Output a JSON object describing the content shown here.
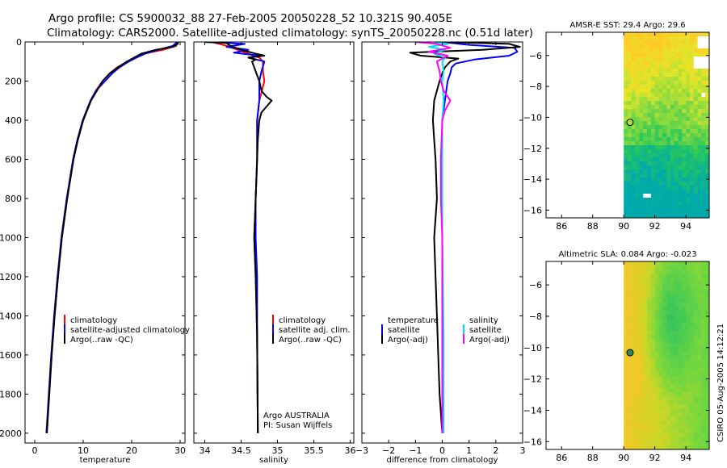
{
  "header": {
    "line1": "Argo profile: CS 5900032_88 27-Feb-2005 20050228_52 10.321S 90.405E",
    "line2": "Climatology: CARS2000. Satellite-adjusted climatology: synTS_20050228.nc (0.51d later)"
  },
  "credit": "CSIRO 05-Aug-2005 14:12:21",
  "chart_data": [
    {
      "type": "line",
      "title": "",
      "xlabel": "temperature",
      "ylabel": "",
      "xlim": [
        -2,
        31
      ],
      "ylim": [
        2050,
        0
      ],
      "xticks": [
        0,
        10,
        20,
        30
      ],
      "yticks": [
        0,
        200,
        400,
        600,
        800,
        1000,
        1200,
        1400,
        1600,
        1800,
        2000
      ],
      "legend": [
        "climatology",
        "satellite-adjusted climatology",
        "Argo(..raw -QC)"
      ],
      "legend_position": "lower-right",
      "series": [
        {
          "name": "climatology",
          "color": "#ff0000",
          "depth": [
            0,
            20,
            40,
            60,
            80,
            100,
            130,
            160,
            200,
            250,
            300,
            400,
            500,
            600,
            800,
            1000,
            1200,
            1400,
            1600,
            1800,
            2000
          ],
          "values": [
            29.4,
            29.2,
            26.5,
            22.5,
            20.8,
            19.2,
            17.0,
            15.5,
            14.0,
            12.6,
            11.6,
            10.0,
            8.9,
            8.0,
            6.7,
            5.6,
            4.8,
            4.1,
            3.5,
            3.0,
            2.5
          ]
        },
        {
          "name": "satellite-adjusted climatology",
          "color": "#0000ff",
          "depth": [
            0,
            20,
            40,
            60,
            80,
            100,
            130,
            160,
            200,
            250,
            300,
            400,
            500,
            600,
            800,
            1000,
            1200,
            1400,
            1600,
            1800,
            2000
          ],
          "values": [
            29.4,
            28.5,
            25.5,
            22.8,
            21.0,
            19.4,
            17.5,
            16.0,
            14.5,
            12.6,
            11.5,
            9.9,
            8.8,
            7.9,
            6.6,
            5.5,
            4.7,
            4.0,
            3.4,
            2.9,
            2.4
          ]
        },
        {
          "name": "Argo(..raw -QC)",
          "color": "#000000",
          "depth": [
            0,
            10,
            25,
            40,
            60,
            80,
            100,
            130,
            160,
            200,
            250,
            300,
            400,
            500,
            600,
            800,
            1000,
            1200,
            1400,
            1600,
            1800,
            2000
          ],
          "values": [
            29.6,
            29.5,
            28.5,
            25.0,
            22.0,
            20.5,
            19.0,
            17.2,
            15.5,
            14.0,
            12.8,
            11.6,
            10.0,
            8.9,
            8.0,
            6.7,
            5.6,
            4.8,
            4.1,
            3.5,
            3.0,
            2.5
          ]
        }
      ]
    },
    {
      "type": "line",
      "title": "",
      "xlabel": "salinity",
      "ylabel": "",
      "xlim": [
        33.85,
        36.05
      ],
      "ylim": [
        2050,
        0
      ],
      "xticks": [
        34,
        34.5,
        35,
        35.5,
        36
      ],
      "yticks": [
        0,
        200,
        400,
        600,
        800,
        1000,
        1200,
        1400,
        1600,
        1800,
        2000
      ],
      "legend": [
        "climatology",
        "satellite adj. clim.",
        "Argo(..raw -QC)"
      ],
      "legend_position": "lower-right",
      "annotation": [
        "Argo AUSTRALIA",
        "PI: Susan Wijffels"
      ],
      "series": [
        {
          "name": "climatology",
          "color": "#ff0000",
          "depth": [
            0,
            20,
            40,
            60,
            80,
            100,
            150,
            200,
            300,
            400,
            600,
            800,
            1000,
            1200,
            1500,
            2000
          ],
          "values": [
            34.1,
            34.3,
            34.45,
            34.6,
            34.75,
            34.8,
            34.8,
            34.82,
            34.75,
            34.72,
            34.72,
            34.7,
            34.68,
            34.7,
            34.72,
            34.73
          ]
        },
        {
          "name": "satellite adj. clim.",
          "color": "#0000ff",
          "depth": [
            0,
            10,
            25,
            40,
            55,
            70,
            80,
            100,
            150,
            200,
            300,
            400,
            600,
            800,
            1000,
            1200,
            1500,
            2000
          ],
          "values": [
            34.0,
            34.55,
            34.3,
            34.6,
            34.4,
            34.75,
            34.6,
            34.82,
            34.78,
            34.75,
            34.75,
            34.72,
            34.72,
            34.7,
            34.7,
            34.72,
            34.72,
            34.73
          ]
        },
        {
          "name": "Argo(..raw -QC)",
          "color": "#000000",
          "depth": [
            0,
            5,
            20,
            40,
            60,
            70,
            80,
            90,
            100,
            150,
            200,
            250,
            280,
            300,
            330,
            360,
            400,
            500,
            600,
            800,
            1000,
            1200,
            1500,
            2000
          ],
          "values": [
            34.0,
            34.3,
            34.35,
            34.5,
            34.7,
            34.82,
            34.6,
            34.7,
            34.65,
            34.7,
            34.75,
            34.78,
            34.85,
            34.92,
            34.85,
            34.78,
            34.75,
            34.73,
            34.72,
            34.7,
            34.68,
            34.7,
            34.72,
            34.73
          ]
        }
      ]
    },
    {
      "type": "line",
      "title": "",
      "xlabel": "difference from climatology",
      "ylabel": "",
      "xlim": [
        -3,
        3
      ],
      "ylim": [
        2050,
        0
      ],
      "xticks": [
        -3,
        -2,
        -1,
        0,
        1,
        2,
        3
      ],
      "yticks": [
        0,
        200,
        400,
        600,
        800,
        1000,
        1200,
        1400,
        1600,
        1800,
        2000
      ],
      "legend_left": [
        "temperature",
        "satellite",
        "Argo(-adj)"
      ],
      "legend_right": [
        "salinity",
        "satellite",
        "Argo(-adj)"
      ],
      "legend_position": "lower",
      "series": [
        {
          "name": "temperature satellite",
          "color": "#0000ff",
          "depth": [
            0,
            15,
            30,
            50,
            70,
            90,
            110,
            130,
            160,
            200,
            300,
            400,
            600,
            800,
            1200,
            2000
          ],
          "values": [
            0.0,
            1.0,
            2.7,
            2.8,
            2.5,
            1.2,
            0.5,
            0.35,
            0.3,
            0.2,
            0.1,
            0.0,
            0.0,
            0.0,
            0.0,
            0.0
          ]
        },
        {
          "name": "temperature Argo(-adj)",
          "color": "#000000",
          "depth": [
            0,
            10,
            25,
            40,
            55,
            70,
            85,
            100,
            130,
            160,
            200,
            300,
            400,
            500,
            600,
            800,
            1000,
            1200,
            1400,
            1600,
            1800,
            2000
          ],
          "values": [
            0.0,
            2.5,
            2.9,
            1.5,
            -1.2,
            -0.8,
            0.6,
            0.3,
            0.1,
            0.0,
            -0.1,
            -0.3,
            -0.35,
            -0.3,
            -0.25,
            -0.2,
            -0.3,
            -0.25,
            -0.2,
            -0.15,
            -0.1,
            0.0
          ]
        },
        {
          "name": "salinity satellite",
          "color": "#00e0f0",
          "depth": [
            0,
            10,
            25,
            40,
            60,
            80,
            100,
            150,
            200,
            300,
            400,
            600,
            1000,
            1500,
            2000
          ],
          "values": [
            -0.3,
            0.2,
            -0.5,
            0.1,
            -0.3,
            0.1,
            0.0,
            0.05,
            0.0,
            0.05,
            0.0,
            0.0,
            0.0,
            0.05,
            0.05
          ]
        },
        {
          "name": "salinity Argo(-adj)",
          "color": "#ff00ff",
          "depth": [
            0,
            10,
            30,
            50,
            70,
            100,
            150,
            200,
            250,
            300,
            350,
            400,
            600,
            800,
            1000,
            1400,
            2000
          ],
          "values": [
            -1.0,
            -0.2,
            0.3,
            -0.5,
            0.2,
            -0.2,
            -0.1,
            -0.05,
            0.05,
            0.3,
            0.1,
            0.0,
            -0.05,
            -0.05,
            0.0,
            0.0,
            0.0
          ]
        }
      ]
    },
    {
      "type": "heatmap",
      "title": "AMSR-E SST: 29.4 Argo: 29.6",
      "xticks": [
        86,
        88,
        90,
        92,
        94
      ],
      "yticks": [
        -6,
        -8,
        -10,
        -12,
        -14,
        -16
      ],
      "xlim": [
        85,
        95.5
      ],
      "ylim": [
        -16.5,
        -4.5
      ],
      "data_xlim": [
        90,
        95.5
      ],
      "marker": {
        "lon": 90.405,
        "lat": -10.321
      }
    },
    {
      "type": "heatmap",
      "title": "Altimetric SLA: 0.084 Argo: -0.023",
      "xticks": [
        86,
        88,
        90,
        92,
        94
      ],
      "yticks": [
        -6,
        -8,
        -10,
        -12,
        -14,
        -16
      ],
      "xlim": [
        85,
        95.5
      ],
      "ylim": [
        -16.5,
        -4.5
      ],
      "data_xlim": [
        90,
        95.5
      ],
      "marker": {
        "lon": 90.405,
        "lat": -10.321
      }
    }
  ]
}
